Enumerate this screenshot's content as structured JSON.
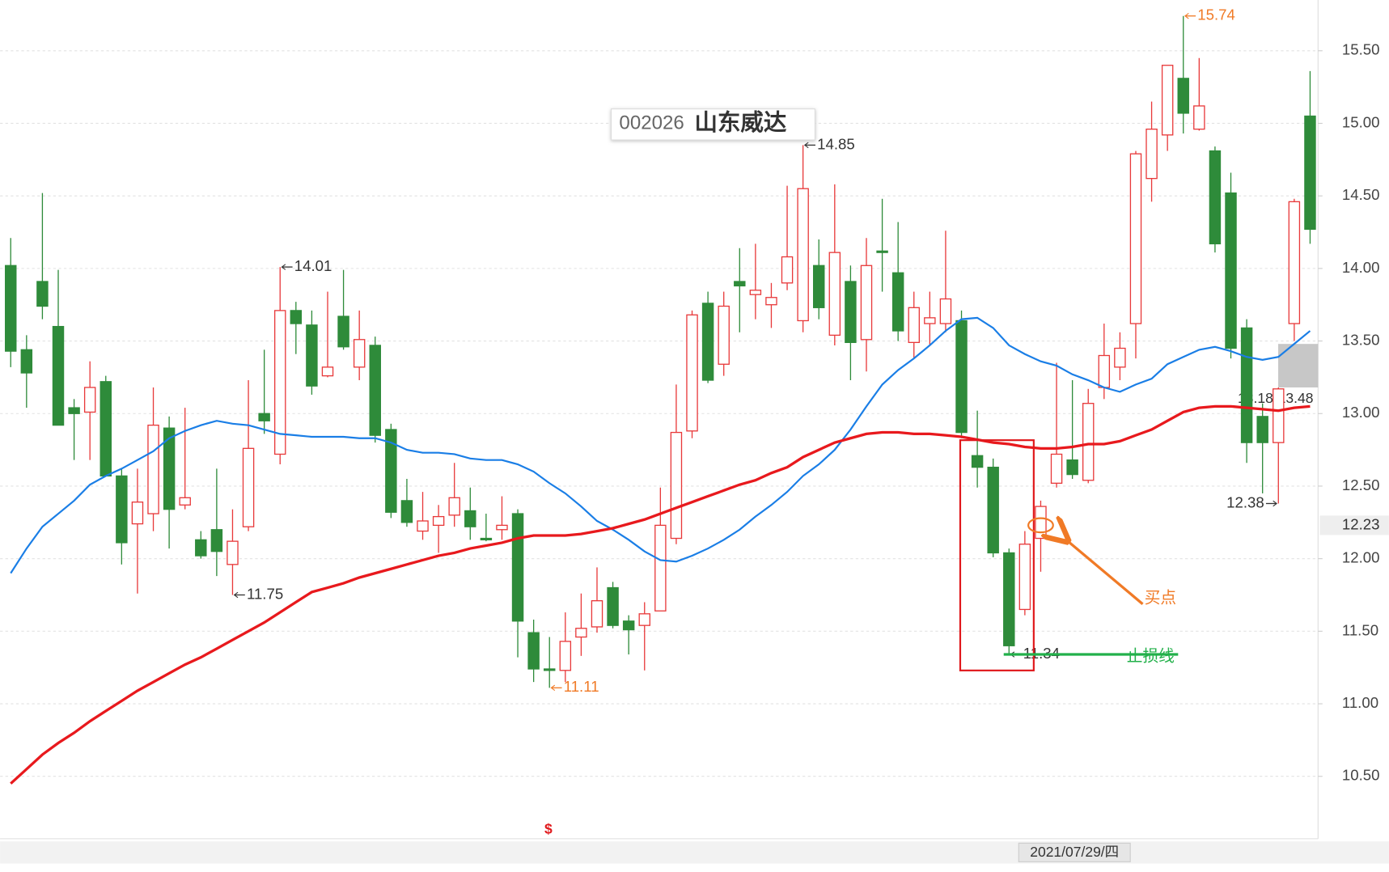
{
  "chart_data": {
    "type": "candlestick",
    "stock_code": "002026",
    "stock_name": "山东威达",
    "categories": [
      null,
      null,
      null,
      null,
      null,
      null,
      null,
      null,
      null,
      null,
      null,
      null,
      null,
      null,
      null,
      null,
      null,
      null,
      null,
      null,
      null,
      null,
      null,
      null,
      null,
      null,
      null,
      null,
      null,
      null,
      null,
      null,
      null,
      null,
      null,
      null,
      null,
      null,
      null,
      null,
      null,
      null,
      null,
      null,
      null,
      null,
      null,
      null,
      null,
      null,
      null,
      null,
      null,
      null,
      null,
      null,
      null,
      null,
      null,
      null,
      null,
      null,
      null,
      null,
      null,
      null,
      null,
      null,
      null,
      null,
      null,
      null,
      null,
      null,
      null,
      null,
      null,
      null,
      null,
      null,
      null,
      null,
      null
    ],
    "open": [
      14.02,
      13.44,
      13.91,
      13.6,
      13.04,
      13.01,
      13.22,
      12.57,
      12.24,
      12.31,
      12.9,
      12.37,
      12.13,
      12.2,
      11.96,
      12.22,
      13.0,
      12.72,
      13.71,
      13.61,
      13.26,
      13.67,
      13.32,
      13.47,
      12.89,
      12.4,
      12.19,
      12.23,
      12.3,
      12.33,
      12.14,
      12.2,
      12.31,
      11.49,
      11.24,
      11.23,
      11.46,
      11.53,
      11.8,
      11.57,
      11.54,
      11.64,
      12.14,
      12.88,
      13.76,
      13.34,
      13.91,
      13.82,
      13.75,
      13.9,
      13.64,
      14.02,
      13.54,
      13.91,
      13.51,
      14.12,
      13.97,
      13.49,
      13.62,
      13.62,
      13.64,
      12.71,
      12.63,
      12.04,
      11.65,
      12.14,
      12.52,
      12.68,
      12.54,
      13.18,
      13.32,
      13.62,
      14.62,
      14.92,
      15.31,
      14.96,
      14.81,
      14.52,
      13.59,
      12.98,
      12.8,
      13.62,
      15.05
    ],
    "high": [
      14.21,
      13.54,
      14.52,
      13.99,
      13.1,
      13.36,
      13.26,
      12.62,
      12.62,
      13.18,
      12.98,
      13.04,
      12.19,
      12.62,
      12.34,
      13.23,
      13.44,
      14.01,
      13.77,
      13.71,
      13.84,
      13.99,
      13.71,
      13.53,
      12.93,
      12.55,
      12.46,
      12.37,
      12.66,
      12.49,
      12.31,
      12.43,
      12.34,
      11.58,
      11.46,
      11.63,
      11.76,
      11.94,
      11.84,
      11.61,
      11.7,
      12.49,
      13.2,
      13.71,
      13.84,
      13.84,
      14.14,
      14.17,
      13.9,
      14.57,
      14.85,
      14.2,
      14.58,
      14.02,
      14.21,
      14.48,
      14.32,
      13.84,
      13.84,
      14.26,
      13.71,
      13.02,
      12.69,
      12.07,
      12.19,
      12.4,
      13.35,
      13.23,
      13.17,
      13.62,
      13.56,
      14.81,
      15.15,
      15.4,
      15.74,
      15.45,
      14.84,
      14.66,
      13.65,
      13.07,
      13.18,
      14.48,
      15.36
    ],
    "low": [
      13.32,
      13.04,
      13.65,
      12.92,
      12.68,
      12.68,
      12.57,
      11.96,
      11.76,
      12.19,
      12.07,
      12.34,
      12.0,
      11.88,
      11.75,
      12.19,
      12.86,
      12.65,
      13.41,
      13.13,
      13.25,
      13.44,
      13.23,
      12.8,
      12.28,
      12.22,
      12.13,
      12.04,
      12.22,
      12.13,
      12.12,
      12.13,
      11.32,
      11.15,
      11.11,
      11.15,
      11.33,
      11.49,
      11.52,
      11.34,
      11.23,
      11.64,
      12.1,
      12.83,
      13.21,
      13.26,
      13.56,
      13.65,
      13.59,
      13.85,
      13.56,
      13.65,
      13.47,
      13.23,
      13.29,
      13.84,
      13.5,
      13.38,
      13.47,
      13.56,
      12.83,
      12.49,
      12.01,
      11.34,
      11.61,
      11.91,
      12.49,
      12.55,
      12.52,
      13.1,
      13.23,
      13.38,
      14.46,
      14.81,
      14.93,
      14.95,
      14.11,
      13.38,
      12.66,
      12.45,
      12.38,
      13.5,
      14.17
    ],
    "close": [
      13.43,
      13.28,
      13.74,
      12.92,
      13.0,
      13.18,
      12.57,
      12.11,
      12.39,
      12.92,
      12.34,
      12.42,
      12.02,
      12.05,
      12.12,
      12.76,
      12.95,
      13.71,
      13.62,
      13.19,
      13.32,
      13.46,
      13.51,
      12.85,
      12.32,
      12.25,
      12.26,
      12.29,
      12.42,
      12.22,
      12.13,
      12.23,
      11.57,
      11.24,
      11.23,
      11.43,
      11.52,
      11.71,
      11.54,
      11.51,
      11.62,
      12.23,
      12.87,
      13.68,
      13.23,
      13.74,
      13.88,
      13.85,
      13.8,
      14.08,
      14.55,
      13.73,
      14.11,
      13.49,
      14.02,
      14.11,
      13.57,
      13.73,
      13.66,
      13.79,
      12.87,
      12.63,
      12.04,
      11.4,
      12.1,
      12.36,
      12.72,
      12.58,
      13.07,
      13.4,
      13.45,
      14.79,
      14.96,
      15.4,
      15.07,
      15.12,
      14.17,
      13.45,
      12.8,
      12.8,
      13.17,
      14.46,
      14.27
    ],
    "up_color": "#e8393a",
    "down_color": "#2e8b3a",
    "series": [
      {
        "color": "#1a7ee6",
        "values": [
          11.9,
          12.07,
          12.22,
          12.31,
          12.4,
          12.51,
          12.57,
          12.62,
          12.68,
          12.74,
          12.83,
          12.88,
          12.92,
          12.95,
          12.93,
          12.92,
          12.89,
          12.86,
          12.85,
          12.84,
          12.84,
          12.84,
          12.83,
          12.83,
          12.8,
          12.75,
          12.73,
          12.73,
          12.72,
          12.69,
          12.68,
          12.68,
          12.65,
          12.6,
          12.52,
          12.45,
          12.36,
          12.26,
          12.2,
          12.13,
          12.05,
          11.99,
          11.98,
          12.02,
          12.07,
          12.13,
          12.2,
          12.29,
          12.37,
          12.46,
          12.57,
          12.65,
          12.75,
          12.89,
          13.05,
          13.2,
          13.3,
          13.38,
          13.47,
          13.57,
          13.65,
          13.66,
          13.59,
          13.47,
          13.41,
          13.36,
          13.33,
          13.27,
          13.23,
          13.18,
          13.15,
          13.2,
          13.24,
          13.34,
          13.39,
          13.44,
          13.46,
          13.43,
          13.39,
          13.37,
          13.39,
          13.48,
          13.57
        ]
      },
      {
        "color": "#e8191d",
        "values": [
          10.45,
          10.55,
          10.65,
          10.73,
          10.8,
          10.88,
          10.95,
          11.02,
          11.09,
          11.15,
          11.21,
          11.27,
          11.32,
          11.38,
          11.44,
          11.5,
          11.56,
          11.63,
          11.7,
          11.77,
          11.8,
          11.83,
          11.87,
          11.9,
          11.93,
          11.96,
          11.99,
          12.02,
          12.04,
          12.07,
          12.09,
          12.11,
          12.14,
          12.16,
          12.16,
          12.16,
          12.17,
          12.19,
          12.21,
          12.24,
          12.27,
          12.31,
          12.35,
          12.39,
          12.43,
          12.47,
          12.51,
          12.54,
          12.59,
          12.63,
          12.7,
          12.75,
          12.8,
          12.83,
          12.86,
          12.87,
          12.87,
          12.86,
          12.86,
          12.85,
          12.84,
          12.82,
          12.8,
          12.79,
          12.77,
          12.76,
          12.76,
          12.77,
          12.79,
          12.79,
          12.81,
          12.85,
          12.89,
          12.95,
          13.01,
          13.04,
          13.05,
          13.05,
          13.04,
          13.03,
          13.02,
          13.04,
          13.05
        ]
      }
    ],
    "ylim": [
      10.07,
      15.85
    ],
    "yticks": [
      {
        "value": 10.5,
        "label": "10.50"
      },
      {
        "value": 11,
        "label": "11.00"
      },
      {
        "value": 11.5,
        "label": "11.50"
      },
      {
        "value": 12,
        "label": "12.00"
      },
      {
        "value": 12.5,
        "label": "12.50"
      },
      {
        "value": 13,
        "label": "13.00"
      },
      {
        "value": 13.5,
        "label": "13.50"
      },
      {
        "value": 14,
        "label": "14.00"
      },
      {
        "value": 14.5,
        "label": "14.50"
      },
      {
        "value": 15,
        "label": "15.00"
      },
      {
        "value": 15.5,
        "label": "15.50"
      }
    ],
    "grid": true,
    "last_price": 12.23,
    "range_box": {
      "low": 13.18,
      "high": 13.48,
      "label": "13.18-13.48"
    },
    "buy_label": "买点",
    "stop_label": "止损线",
    "crosshair_date": "2021/07/29/四",
    "marker_text": "$"
  }
}
